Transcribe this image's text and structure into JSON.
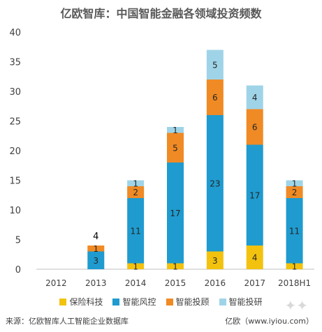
{
  "page": {
    "title": "亿欧智库：中国智能金融各领域投资频数",
    "source": "来源：亿欧智库人工智能企业数据库",
    "credit": "亿欧（www.iyiou.com）"
  },
  "chart_data": {
    "type": "bar",
    "stacked": true,
    "title": "亿欧智库：中国智能金融各领域投资频数",
    "categories": [
      "2012",
      "2013",
      "2014",
      "2015",
      "2016",
      "2017",
      "2018H1"
    ],
    "ylim": [
      0,
      40
    ],
    "yticks": [
      0,
      5,
      10,
      15,
      20,
      25,
      30,
      35,
      40
    ],
    "grid": false,
    "legend_position": "bottom",
    "series": [
      {
        "name": "保险科技",
        "color": "#f2c20f",
        "values": [
          0,
          0,
          1,
          1,
          3,
          4,
          1
        ]
      },
      {
        "name": "智能风控",
        "color": "#1f9bcf",
        "values": [
          0,
          3,
          11,
          17,
          23,
          17,
          11
        ]
      },
      {
        "name": "智能投顾",
        "color": "#f08a24",
        "values": [
          0,
          1,
          2,
          5,
          6,
          6,
          2
        ]
      },
      {
        "name": "智能投研",
        "color": "#9fd4e8",
        "values": [
          0,
          0,
          1,
          1,
          5,
          4,
          1
        ]
      }
    ],
    "totals_shown": [
      {
        "category": "2013",
        "value": 4
      }
    ]
  }
}
